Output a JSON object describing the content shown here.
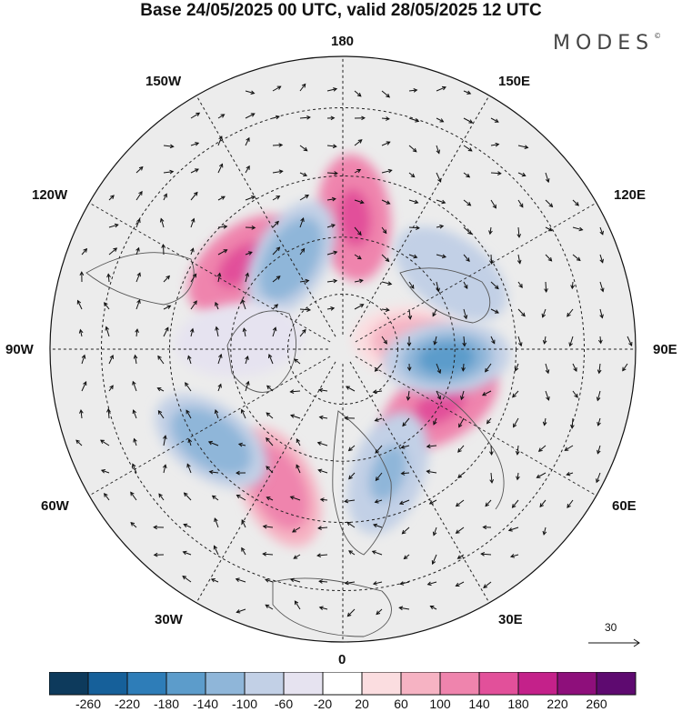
{
  "title": "Base 24/05/2025 00 UTC, valid 28/05/2025 12 UTC",
  "logo": "MODES",
  "logo_mark": "©",
  "longitude_labels": {
    "top": "180",
    "bottom": "0",
    "left": "90W",
    "right": "90E",
    "upper_left_1": "150W",
    "upper_left_2": "120W",
    "upper_right_1": "150E",
    "upper_right_2": "120E",
    "lower_left_1": "60W",
    "lower_left_2": "30W",
    "lower_right_1": "60E",
    "lower_right_2": "30E"
  },
  "reference_vector": "30",
  "colorbar": {
    "ticks": [
      "-260",
      "-220",
      "-180",
      "-140",
      "-100",
      "-60",
      "-20",
      "20",
      "60",
      "100",
      "140",
      "180",
      "220",
      "260"
    ],
    "colors": [
      "#0d3a5c",
      "#16609a",
      "#2e7db8",
      "#5c9ccb",
      "#8fb6d9",
      "#c2d0e6",
      "#e6e3f0",
      "#ffffff",
      "#fbdde0",
      "#f6b3c3",
      "#ef84ad",
      "#e2509a",
      "#c4218a",
      "#8e0f7b",
      "#5e0a70"
    ]
  },
  "anomaly_centers": [
    {
      "lon": 175,
      "lat": 55,
      "value": 200
    },
    {
      "lon": -130,
      "lat": 55,
      "value": 200
    },
    {
      "lon": -25,
      "lat": 50,
      "value": 160
    },
    {
      "lon": 60,
      "lat": 60,
      "value": 200
    },
    {
      "lon": 95,
      "lat": 70,
      "value": 100
    },
    {
      "lon": -150,
      "lat": 62,
      "value": -150
    },
    {
      "lon": 125,
      "lat": 55,
      "value": -120
    },
    {
      "lon": 85,
      "lat": 62,
      "value": -180
    },
    {
      "lon": 20,
      "lat": 55,
      "value": -140
    },
    {
      "lon": -55,
      "lat": 48,
      "value": -160
    },
    {
      "lon": -95,
      "lat": 62,
      "value": -60
    }
  ]
}
